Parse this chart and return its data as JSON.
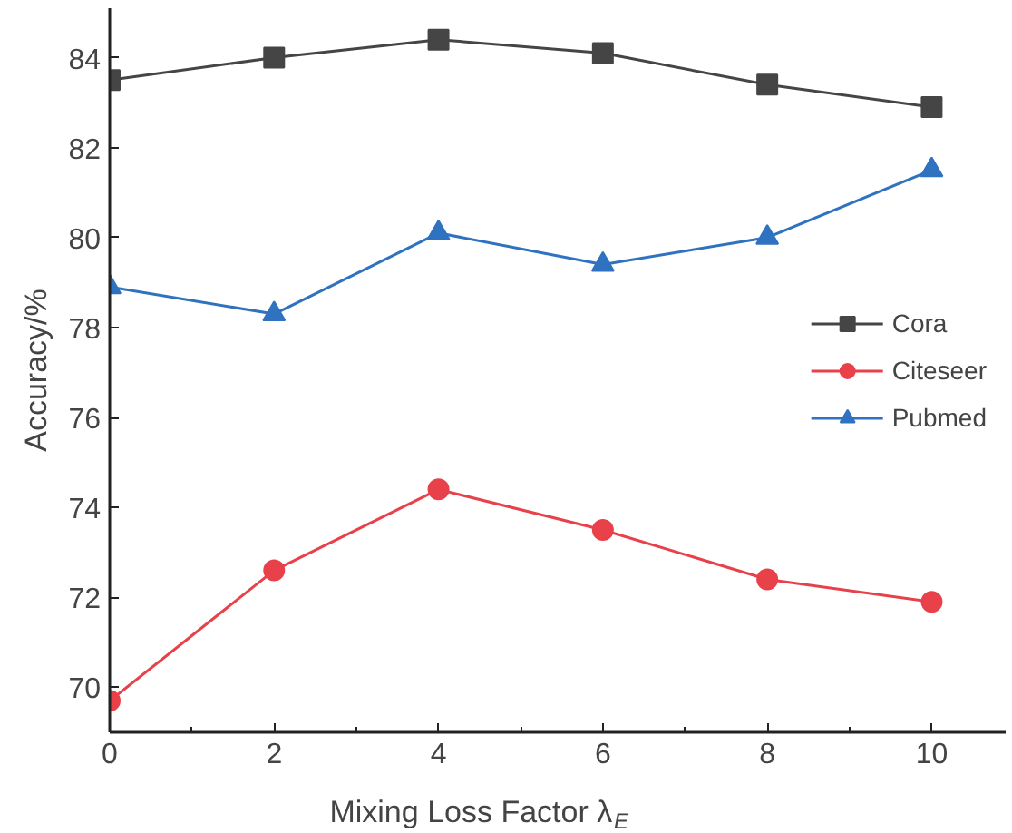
{
  "chart_data": {
    "type": "line",
    "xlabel": "Mixing Loss Factor λ$_{E}$",
    "ylabel": "Accuracy/%",
    "x": [
      0,
      2,
      4,
      6,
      8,
      10
    ],
    "series": [
      {
        "name": "Cora",
        "color": "#454545",
        "marker": "square",
        "values": [
          83.5,
          84.0,
          84.4,
          84.1,
          83.4,
          82.9
        ]
      },
      {
        "name": "Citeseer",
        "color": "#e8414a",
        "marker": "circle",
        "values": [
          69.7,
          72.6,
          74.4,
          73.5,
          72.4,
          71.9
        ]
      },
      {
        "name": "Pubmed",
        "color": "#2f72c0",
        "marker": "triangle",
        "values": [
          78.9,
          78.3,
          80.1,
          79.4,
          80.0,
          81.5
        ]
      }
    ],
    "xlim": [
      0,
      10.9
    ],
    "ylim": [
      69.0,
      85.1
    ],
    "xticks": [
      0,
      2,
      4,
      6,
      8,
      10
    ],
    "yticks": [
      70,
      72,
      74,
      76,
      78,
      80,
      82,
      84
    ],
    "grid": false,
    "legend": "right",
    "line_style": "solid"
  }
}
